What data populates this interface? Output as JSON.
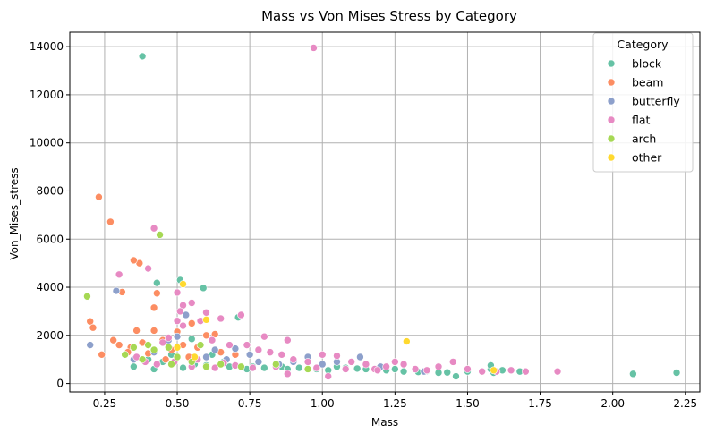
{
  "chart_data": {
    "type": "scatter",
    "title": "Mass vs Von Mises Stress by Category",
    "xlabel": "Mass",
    "ylabel": "Von_Mises_stress",
    "xlim": [
      0.13,
      2.3
    ],
    "ylim": [
      -350,
      14600
    ],
    "x_ticks": [
      {
        "value": 0.25,
        "label": "0.25"
      },
      {
        "value": 0.5,
        "label": "0.50"
      },
      {
        "value": 0.75,
        "label": "0.75"
      },
      {
        "value": 1.0,
        "label": "1.00"
      },
      {
        "value": 1.25,
        "label": "1.25"
      },
      {
        "value": 1.5,
        "label": "1.50"
      },
      {
        "value": 1.75,
        "label": "1.75"
      },
      {
        "value": 2.0,
        "label": "2.00"
      },
      {
        "value": 2.25,
        "label": "2.25"
      }
    ],
    "y_ticks": [
      {
        "value": 0,
        "label": "0"
      },
      {
        "value": 2000,
        "label": "2000"
      },
      {
        "value": 4000,
        "label": "4000"
      },
      {
        "value": 6000,
        "label": "6000"
      },
      {
        "value": 8000,
        "label": "8000"
      },
      {
        "value": 10000,
        "label": "10000"
      },
      {
        "value": 12000,
        "label": "12000"
      },
      {
        "value": 14000,
        "label": "14000"
      }
    ],
    "grid": true,
    "legend": {
      "title": "Category",
      "placement": "top-right"
    },
    "series": [
      {
        "name": "block",
        "color": "#66c2a5",
        "points": [
          [
            0.38,
            13600
          ],
          [
            0.51,
            4300
          ],
          [
            0.43,
            4180
          ],
          [
            0.59,
            3970
          ],
          [
            0.71,
            2750
          ],
          [
            0.55,
            1850
          ],
          [
            0.62,
            1200
          ],
          [
            0.45,
            900
          ],
          [
            0.52,
            650
          ],
          [
            0.6,
            750
          ],
          [
            0.68,
            700
          ],
          [
            0.74,
            600
          ],
          [
            0.8,
            650
          ],
          [
            0.86,
            700
          ],
          [
            0.92,
            650
          ],
          [
            0.98,
            600
          ],
          [
            1.02,
            550
          ],
          [
            1.08,
            650
          ],
          [
            1.15,
            600
          ],
          [
            1.22,
            550
          ],
          [
            1.28,
            500
          ],
          [
            1.33,
            480
          ],
          [
            1.4,
            450
          ],
          [
            1.46,
            300
          ],
          [
            1.5,
            500
          ],
          [
            1.58,
            600
          ],
          [
            1.58,
            750
          ],
          [
            1.59,
            450
          ],
          [
            1.62,
            550
          ],
          [
            1.68,
            500
          ],
          [
            2.07,
            400
          ],
          [
            2.22,
            450
          ],
          [
            0.42,
            600
          ],
          [
            0.48,
            1200
          ],
          [
            0.35,
            700
          ],
          [
            0.4,
            1000
          ],
          [
            0.56,
            800
          ],
          [
            0.66,
            900
          ],
          [
            0.76,
            700
          ],
          [
            0.88,
            600
          ],
          [
            1.05,
            700
          ],
          [
            1.12,
            620
          ],
          [
            1.25,
            600
          ],
          [
            1.36,
            520
          ],
          [
            1.43,
            460
          ]
        ]
      },
      {
        "name": "beam",
        "color": "#fc8d62",
        "points": [
          [
            0.23,
            7750
          ],
          [
            0.27,
            6720
          ],
          [
            0.37,
            5000
          ],
          [
            0.35,
            5120
          ],
          [
            0.43,
            3750
          ],
          [
            0.31,
            3800
          ],
          [
            0.42,
            3150
          ],
          [
            0.2,
            2580
          ],
          [
            0.21,
            2320
          ],
          [
            0.36,
            2200
          ],
          [
            0.42,
            2200
          ],
          [
            0.5,
            2150
          ],
          [
            0.55,
            2500
          ],
          [
            0.6,
            2000
          ],
          [
            0.63,
            2050
          ],
          [
            0.24,
            1200
          ],
          [
            0.3,
            1600
          ],
          [
            0.28,
            1800
          ],
          [
            0.34,
            1500
          ],
          [
            0.38,
            1700
          ],
          [
            0.45,
            1800
          ],
          [
            0.48,
            1400
          ],
          [
            0.52,
            1600
          ],
          [
            0.57,
            1500
          ],
          [
            0.65,
            1300
          ],
          [
            0.7,
            1200
          ],
          [
            0.33,
            1300
          ],
          [
            0.4,
            1250
          ],
          [
            0.46,
            1000
          ],
          [
            0.54,
            1100
          ]
        ]
      },
      {
        "name": "butterfly",
        "color": "#8da0cb",
        "points": [
          [
            0.29,
            3850
          ],
          [
            0.2,
            1600
          ],
          [
            0.53,
            2850
          ],
          [
            0.47,
            1800
          ],
          [
            0.5,
            1950
          ],
          [
            0.63,
            1400
          ],
          [
            0.7,
            1450
          ],
          [
            0.6,
            1100
          ],
          [
            0.35,
            1000
          ],
          [
            0.42,
            1300
          ],
          [
            0.55,
            900
          ],
          [
            0.67,
            1000
          ],
          [
            0.78,
            900
          ],
          [
            0.85,
            800
          ],
          [
            0.95,
            1100
          ],
          [
            1.0,
            800
          ],
          [
            1.13,
            1100
          ],
          [
            1.2,
            700
          ],
          [
            1.35,
            500
          ],
          [
            0.75,
            1200
          ],
          [
            0.9,
            900
          ],
          [
            1.05,
            900
          ]
        ]
      },
      {
        "name": "flat",
        "color": "#e78ac3",
        "points": [
          [
            0.97,
            13950
          ],
          [
            0.42,
            6450
          ],
          [
            0.4,
            4780
          ],
          [
            0.3,
            4530
          ],
          [
            0.55,
            3350
          ],
          [
            0.5,
            3780
          ],
          [
            0.52,
            3250
          ],
          [
            0.51,
            3000
          ],
          [
            0.6,
            2950
          ],
          [
            0.65,
            2700
          ],
          [
            0.72,
            2850
          ],
          [
            0.58,
            2600
          ],
          [
            0.52,
            2400
          ],
          [
            0.5,
            2600
          ],
          [
            0.45,
            1700
          ],
          [
            0.47,
            1900
          ],
          [
            0.62,
            1800
          ],
          [
            0.68,
            1600
          ],
          [
            0.74,
            1600
          ],
          [
            0.78,
            1400
          ],
          [
            0.82,
            1300
          ],
          [
            0.88,
            1800
          ],
          [
            0.8,
            1950
          ],
          [
            0.86,
            1200
          ],
          [
            0.9,
            1000
          ],
          [
            0.95,
            900
          ],
          [
            1.0,
            1200
          ],
          [
            1.02,
            300
          ],
          [
            0.88,
            400
          ],
          [
            1.05,
            1150
          ],
          [
            1.1,
            900
          ],
          [
            1.15,
            800
          ],
          [
            1.18,
            600
          ],
          [
            1.22,
            700
          ],
          [
            1.25,
            900
          ],
          [
            1.28,
            800
          ],
          [
            1.32,
            600
          ],
          [
            1.36,
            550
          ],
          [
            1.4,
            700
          ],
          [
            1.45,
            900
          ],
          [
            1.5,
            600
          ],
          [
            1.55,
            500
          ],
          [
            1.6,
            500
          ],
          [
            1.65,
            550
          ],
          [
            1.7,
            500
          ],
          [
            1.81,
            500
          ],
          [
            0.55,
            700
          ],
          [
            0.63,
            650
          ],
          [
            0.7,
            750
          ],
          [
            0.76,
            650
          ],
          [
            0.84,
            700
          ],
          [
            0.98,
            650
          ],
          [
            1.08,
            600
          ],
          [
            1.19,
            550
          ],
          [
            0.36,
            1100
          ],
          [
            0.39,
            900
          ],
          [
            0.43,
            800
          ],
          [
            0.49,
            900
          ],
          [
            0.57,
            1000
          ],
          [
            0.66,
            850
          ]
        ]
      },
      {
        "name": "arch",
        "color": "#a6d854",
        "points": [
          [
            0.44,
            6180
          ],
          [
            0.19,
            3620
          ],
          [
            0.4,
            1600
          ],
          [
            0.35,
            1500
          ],
          [
            0.47,
            1500
          ],
          [
            0.58,
            1600
          ],
          [
            0.32,
            1200
          ],
          [
            0.42,
            1400
          ],
          [
            0.5,
            1100
          ],
          [
            0.55,
            900
          ],
          [
            0.6,
            700
          ],
          [
            0.65,
            800
          ],
          [
            0.72,
            700
          ],
          [
            0.48,
            800
          ],
          [
            0.38,
            1000
          ],
          [
            0.84,
            800
          ],
          [
            0.95,
            600
          ]
        ]
      },
      {
        "name": "other",
        "color": "#ffd92f",
        "points": [
          [
            0.52,
            4130
          ],
          [
            0.6,
            2650
          ],
          [
            1.29,
            1750
          ],
          [
            1.59,
            550
          ],
          [
            0.5,
            1500
          ],
          [
            0.56,
            1100
          ]
        ]
      }
    ]
  }
}
